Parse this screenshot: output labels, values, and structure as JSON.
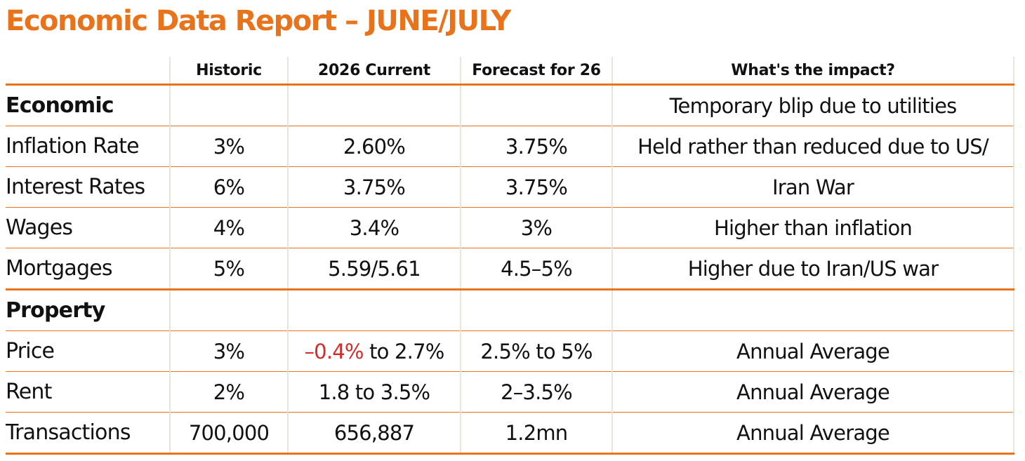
{
  "title": "Economic Data Report – JUNE/JULY",
  "colors": {
    "accent": "#e8731a",
    "negative": "#d42b2b",
    "text": "#111111"
  },
  "headers": [
    "",
    "Historic",
    "2026 Current",
    "Forecast for 26",
    "What's the impact?"
  ],
  "sections": [
    {
      "label": "Economic",
      "impact": "Temporary blip due to utilities",
      "rows": [
        {
          "label": "Inflation Rate",
          "historic": "3%",
          "current": "2.60%",
          "forecast": "3.75%",
          "impact": "Held rather than reduced due to US/"
        },
        {
          "label": "Interest Rates",
          "historic": "6%",
          "current": "3.75%",
          "forecast": "3.75%",
          "impact": "Iran War"
        },
        {
          "label": "Wages",
          "historic": "4%",
          "current": "3.4%",
          "forecast": "3%",
          "impact": "Higher than inflation"
        },
        {
          "label": "Mortgages",
          "historic": "5%",
          "current": "5.59/5.61",
          "forecast": "4.5–5%",
          "impact": "Higher due to Iran/US war"
        }
      ]
    },
    {
      "label": "Property",
      "impact": "",
      "rows": [
        {
          "label": "Price",
          "historic": "3%",
          "current_neg": "–0.4%",
          "current_rest": " to 2.7%",
          "forecast": "2.5% to 5%",
          "impact": "Annual Average"
        },
        {
          "label": "Rent",
          "historic": "2%",
          "current": "1.8 to 3.5%",
          "forecast": "2–3.5%",
          "impact": "Annual Average"
        },
        {
          "label": "Transactions",
          "historic": "700,000",
          "current": "656,887",
          "forecast": "1.2mn",
          "impact": "Annual Average"
        }
      ]
    }
  ]
}
